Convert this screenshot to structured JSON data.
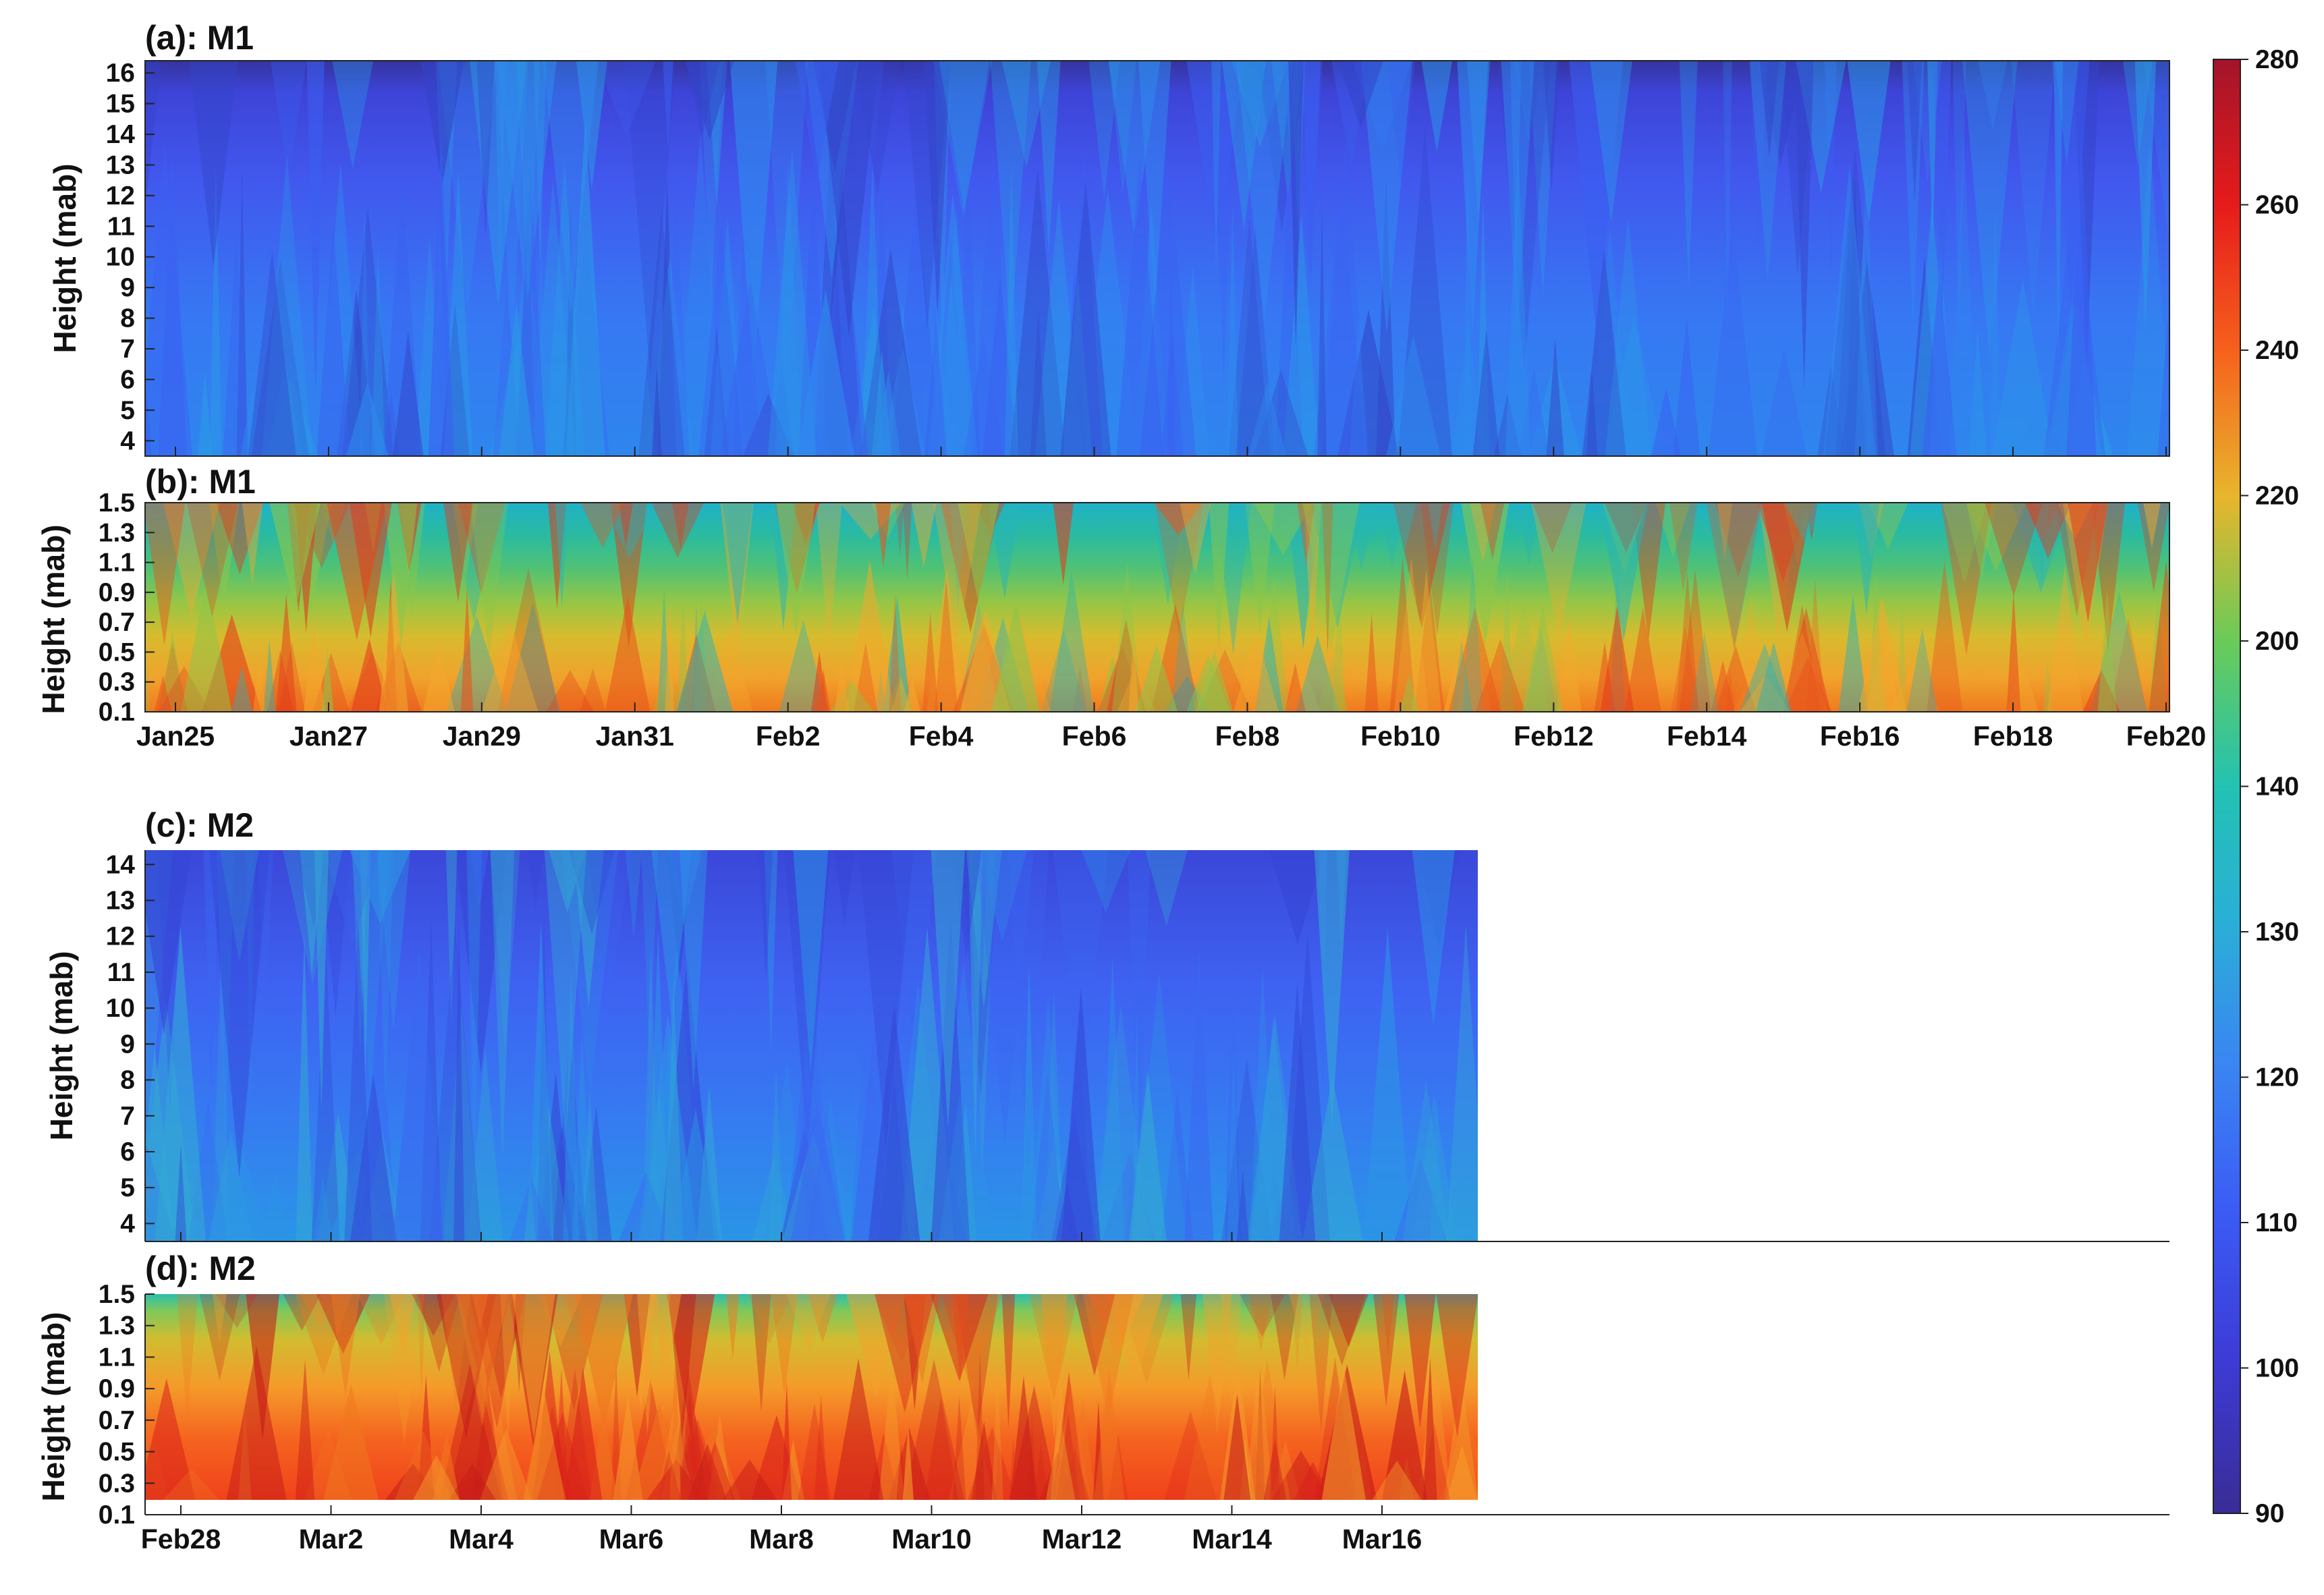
{
  "chart_data": [
    {
      "type": "heatmap",
      "panel_label": "(a): M1",
      "ylabel": "Height  (mab)",
      "yticks": [
        "4",
        "5",
        "6",
        "7",
        "8",
        "9",
        "10",
        "11",
        "12",
        "13",
        "14",
        "15",
        "16"
      ],
      "ylim": [
        3.5,
        16.4
      ],
      "xticks": [],
      "colormap": "jet",
      "value_min": 96,
      "value_max": 118,
      "note_values": [
        {
          "height": 4,
          "value": 118
        },
        {
          "height": 8,
          "value": 112
        },
        {
          "height": 12,
          "value": 106
        },
        {
          "height": 15,
          "value": 100
        },
        {
          "height": 16,
          "value": 96
        }
      ]
    },
    {
      "type": "heatmap",
      "panel_label": "(b): M1",
      "ylabel": "Height  (mab)",
      "yticks": [
        "0.1",
        "0.3",
        "0.5",
        "0.7",
        "0.9",
        "1.1",
        "1.3",
        "1.5"
      ],
      "ylim": [
        0.1,
        1.5
      ],
      "xticks": [
        "Jan25",
        "Jan27",
        "Jan29",
        "Jan31",
        "Feb2",
        "Feb4",
        "Feb6",
        "Feb8",
        "Feb10",
        "Feb12",
        "Feb14",
        "Feb16",
        "Feb18",
        "Feb20"
      ],
      "colormap": "jet",
      "value_min": 128,
      "value_max": 238,
      "note_values": [
        {
          "height": 0.2,
          "value": 225
        },
        {
          "height": 0.5,
          "value": 215
        },
        {
          "height": 0.8,
          "value": 200
        },
        {
          "height": 1.1,
          "value": 160
        },
        {
          "height": 1.4,
          "value": 133
        }
      ]
    },
    {
      "type": "heatmap",
      "panel_label": "(c): M2",
      "ylabel": "Height  (mab)",
      "yticks": [
        "4",
        "5",
        "6",
        "7",
        "8",
        "9",
        "10",
        "11",
        "12",
        "13",
        "14"
      ],
      "ylim": [
        3.5,
        14.4
      ],
      "xticks": [],
      "colormap": "jet",
      "value_min": 98,
      "value_max": 125,
      "note_values": [
        {
          "height": 4,
          "value": 119
        },
        {
          "height": 8,
          "value": 113
        },
        {
          "height": 11,
          "value": 108
        },
        {
          "height": 14,
          "value": 102
        }
      ]
    },
    {
      "type": "heatmap",
      "panel_label": "(d): M2",
      "ylabel": "Height  (mab)",
      "yticks": [
        "0.1",
        "0.3",
        "0.5",
        "0.7",
        "0.9",
        "1.1",
        "1.3",
        "1.5"
      ],
      "ylim": [
        0.1,
        1.5
      ],
      "xticks": [
        "Feb28",
        "Mar2",
        "Mar4",
        "Mar6",
        "Mar8",
        "Mar10",
        "Mar12",
        "Mar14",
        "Mar16"
      ],
      "colormap": "jet",
      "value_min": 135,
      "value_max": 255,
      "note_values": [
        {
          "height": 0.2,
          "value": 240
        },
        {
          "height": 0.6,
          "value": 228
        },
        {
          "height": 1.0,
          "value": 215
        },
        {
          "height": 1.3,
          "value": 195
        },
        {
          "height": 1.5,
          "value": 145
        }
      ]
    }
  ],
  "colorbar": {
    "range": [
      90,
      280
    ],
    "ticks": [
      "90",
      "100",
      "110",
      "120",
      "130",
      "140",
      "200",
      "220",
      "240",
      "260",
      "280"
    ]
  }
}
